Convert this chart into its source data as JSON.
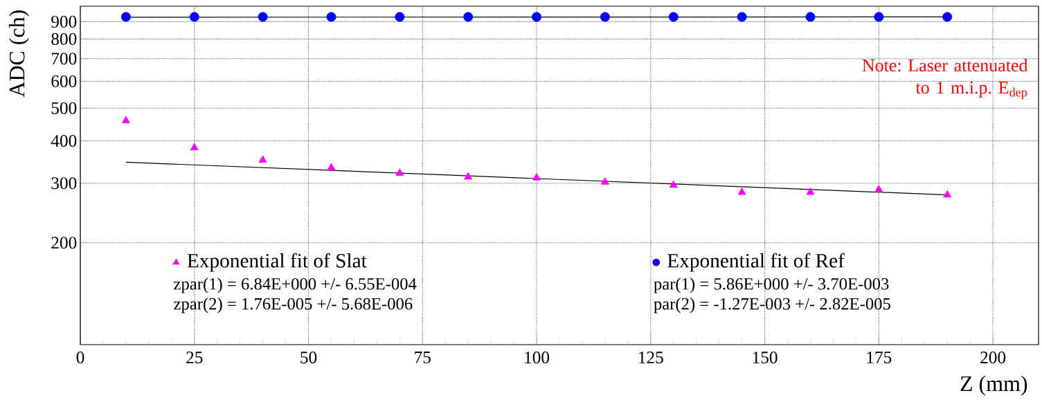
{
  "chart_data": {
    "type": "scatter",
    "xlabel": "Z (mm)",
    "ylabel": "ADC (ch)",
    "xlim": [
      0,
      210
    ],
    "ylim": [
      100,
      1000
    ],
    "log": "y",
    "grid": true,
    "legend": "bottom",
    "xticks": [
      0,
      25,
      50,
      75,
      100,
      125,
      150,
      175,
      200
    ],
    "yticks": [
      200,
      300,
      400,
      500,
      600,
      700,
      800,
      900
    ],
    "series": [
      {
        "name": "Exponential fit of Slat",
        "marker": "triangle",
        "color": "#ff00ff",
        "x": [
          10,
          25,
          40,
          55,
          70,
          85,
          100,
          115,
          130,
          145,
          160,
          175,
          190
        ],
        "values": [
          459,
          382,
          351,
          333,
          321,
          313,
          311,
          302,
          296,
          282,
          282,
          287,
          277
        ]
      },
      {
        "name": "Exponential fit of Ref",
        "marker": "circle",
        "color": "#0000ff",
        "x": [
          10,
          25,
          40,
          55,
          70,
          85,
          100,
          115,
          130,
          145,
          160,
          175,
          190
        ],
        "values": [
          930,
          930,
          930,
          930,
          930,
          930,
          930,
          930,
          930,
          930,
          930,
          930,
          930
        ]
      },
      {
        "type": "line",
        "marker": "none",
        "color": "#000000",
        "x": [
          10,
          190
        ],
        "values": [
          346,
          277
        ]
      },
      {
        "type": "line",
        "marker": "none",
        "color": "#000000",
        "x": [
          10,
          190
        ],
        "values": [
          928,
          930
        ]
      }
    ],
    "annotations": [
      "zpar(1) = 6.84E+000 +/- 6.55E-004",
      "zpar(2) = 1.76E-005 +/- 5.68E-006",
      "par(1) = 5.86E+000 +/- 3.70E-003",
      "par(2) = -1.27E-003 +/- 2.82E-005",
      "Note: Laser attenuated to 1 m.i.p. E$_{dep}$"
    ]
  }
}
